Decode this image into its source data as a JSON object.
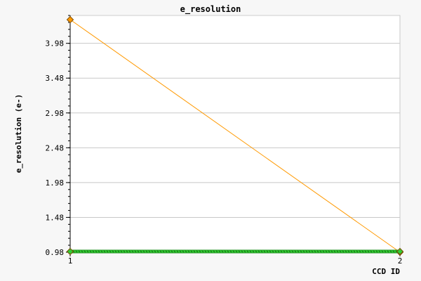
{
  "chart_data": {
    "type": "line",
    "title": "e_resolution",
    "xlabel": "CCD ID",
    "ylabel": "e_resolution (e-)",
    "x_ticks": [
      "1",
      "2"
    ],
    "y_ticks": [
      "0.98",
      "1.48",
      "1.98",
      "2.48",
      "2.98",
      "3.48",
      "3.98"
    ],
    "xlim": [
      1,
      2
    ],
    "ylim": [
      0.98,
      4.38
    ],
    "grid": true,
    "series": [
      {
        "color": "#ff9900",
        "marker": "diamond",
        "points": [
          {
            "x": 1,
            "y": 4.32
          },
          {
            "x": 2,
            "y": 0.98
          }
        ]
      },
      {
        "color": "#33cc33",
        "marker": "diamond",
        "points": [
          {
            "x": 1,
            "y": 0.99
          },
          {
            "x": 2,
            "y": 0.99
          }
        ]
      }
    ]
  }
}
